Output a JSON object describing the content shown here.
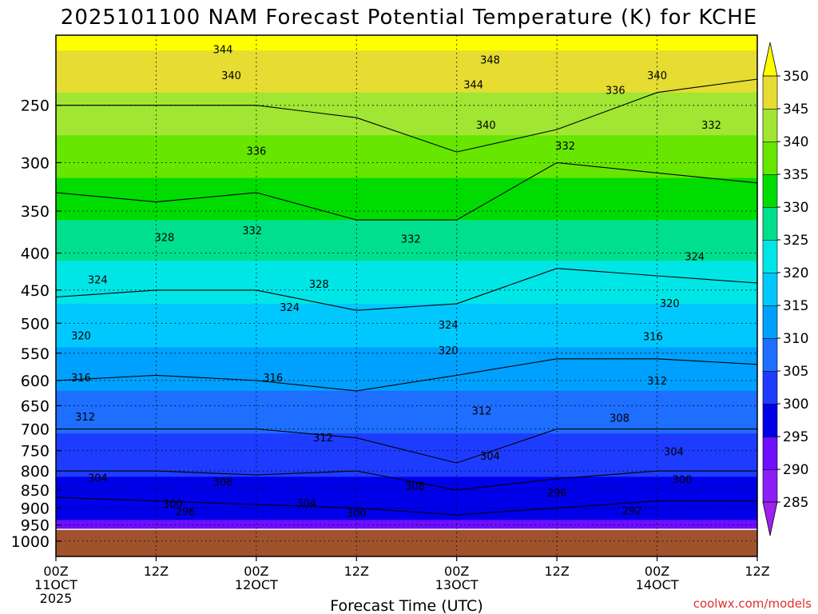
{
  "chart_data": {
    "type": "heatmap",
    "title": "2025101100 NAM Forecast Potential Temperature (K) for KCHE",
    "xlabel": "Forecast Time (UTC)",
    "ylabel": "",
    "watermark": "coolwx.com/models",
    "y_scale": "log",
    "y_axis": {
      "unit": "hPa",
      "range": [
        200,
        1050
      ],
      "ticks": [
        "250",
        "300",
        "350",
        "400",
        "450",
        "500",
        "550",
        "600",
        "650",
        "700",
        "750",
        "800",
        "850",
        "900",
        "950",
        "1000"
      ]
    },
    "x_axis": {
      "range_hours": [
        0,
        84
      ],
      "ticks": [
        {
          "hour": 0,
          "label": "00Z",
          "date": "11OCT",
          "year": "2025"
        },
        {
          "hour": 12,
          "label": "12Z",
          "date": "",
          "year": ""
        },
        {
          "hour": 24,
          "label": "00Z",
          "date": "12OCT",
          "year": ""
        },
        {
          "hour": 36,
          "label": "12Z",
          "date": "",
          "year": ""
        },
        {
          "hour": 48,
          "label": "00Z",
          "date": "13OCT",
          "year": ""
        },
        {
          "hour": 60,
          "label": "12Z",
          "date": "",
          "year": ""
        },
        {
          "hour": 72,
          "label": "00Z",
          "date": "14OCT",
          "year": ""
        },
        {
          "hour": 84,
          "label": "12Z",
          "date": "",
          "year": ""
        }
      ]
    },
    "colorbar": {
      "ticks": [
        "285",
        "290",
        "295",
        "300",
        "305",
        "310",
        "315",
        "320",
        "325",
        "330",
        "335",
        "340",
        "345",
        "350"
      ],
      "bands": [
        {
          "from": 280,
          "to": 285,
          "color": "#a020f0"
        },
        {
          "from": 285,
          "to": 290,
          "color": "#8c1ef8"
        },
        {
          "from": 290,
          "to": 295,
          "color": "#6e0fff"
        },
        {
          "from": 295,
          "to": 300,
          "color": "#0000e8"
        },
        {
          "from": 300,
          "to": 305,
          "color": "#1e3cff"
        },
        {
          "from": 305,
          "to": 310,
          "color": "#1e6eff"
        },
        {
          "from": 310,
          "to": 315,
          "color": "#00a0ff"
        },
        {
          "from": 315,
          "to": 320,
          "color": "#00c8ff"
        },
        {
          "from": 320,
          "to": 325,
          "color": "#00e6e6"
        },
        {
          "from": 325,
          "to": 330,
          "color": "#00e08c"
        },
        {
          "from": 330,
          "to": 335,
          "color": "#00dc00"
        },
        {
          "from": 335,
          "to": 340,
          "color": "#66e600"
        },
        {
          "from": 340,
          "to": 345,
          "color": "#a0e632"
        },
        {
          "from": 345,
          "to": 350,
          "color": "#e6dc32"
        },
        {
          "from": 350,
          "to": 355,
          "color": "#ffff00"
        }
      ]
    },
    "surface_color": "#a0522d",
    "series": [
      {
        "hours": [
          0,
          12,
          24,
          36,
          48,
          60,
          72,
          84
        ],
        "pressures": [
          250,
          250,
          250,
          260,
          290,
          270,
          240,
          230
        ]
      },
      {
        "hours": [
          0,
          12,
          24,
          36,
          48,
          60,
          72,
          84
        ],
        "pressures": [
          330,
          340,
          330,
          360,
          360,
          300,
          310,
          320
        ]
      },
      {
        "hours": [
          0,
          12,
          24,
          36,
          48,
          60,
          72,
          84
        ],
        "pressures": [
          460,
          450,
          450,
          480,
          470,
          420,
          430,
          440
        ]
      },
      {
        "hours": [
          0,
          12,
          24,
          36,
          48,
          60,
          72,
          84
        ],
        "pressures": [
          600,
          590,
          600,
          620,
          590,
          560,
          560,
          570
        ]
      },
      {
        "hours": [
          0,
          12,
          24,
          36,
          48,
          60,
          72,
          84
        ],
        "pressures": [
          700,
          700,
          700,
          720,
          780,
          700,
          700,
          700
        ]
      },
      {
        "hours": [
          0,
          12,
          24,
          36,
          48,
          60,
          72,
          84
        ],
        "pressures": [
          800,
          800,
          810,
          800,
          850,
          820,
          800,
          800
        ]
      },
      {
        "hours": [
          0,
          12,
          24,
          36,
          48,
          60,
          72,
          84
        ],
        "pressures": [
          870,
          880,
          890,
          900,
          920,
          900,
          880,
          880
        ]
      }
    ],
    "contour_labels": [
      {
        "value": "344",
        "hour": 20,
        "hPa": 209
      },
      {
        "value": "348",
        "hour": 52,
        "hPa": 216
      },
      {
        "value": "340",
        "hour": 21,
        "hPa": 227
      },
      {
        "value": "344",
        "hour": 50,
        "hPa": 234
      },
      {
        "value": "340",
        "hour": 72,
        "hPa": 227
      },
      {
        "value": "336",
        "hour": 67,
        "hPa": 238
      },
      {
        "value": "340",
        "hour": 51.5,
        "hPa": 266
      },
      {
        "value": "332",
        "hour": 78.5,
        "hPa": 266
      },
      {
        "value": "336",
        "hour": 24,
        "hPa": 289
      },
      {
        "value": "332",
        "hour": 61,
        "hPa": 284
      },
      {
        "value": "328",
        "hour": 13,
        "hPa": 380
      },
      {
        "value": "332",
        "hour": 23.5,
        "hPa": 372
      },
      {
        "value": "332",
        "hour": 42.5,
        "hPa": 382
      },
      {
        "value": "324",
        "hour": 76.5,
        "hPa": 404
      },
      {
        "value": "324",
        "hour": 5,
        "hPa": 435
      },
      {
        "value": "328",
        "hour": 31.5,
        "hPa": 441
      },
      {
        "value": "324",
        "hour": 28,
        "hPa": 475
      },
      {
        "value": "320",
        "hour": 73.5,
        "hPa": 469
      },
      {
        "value": "324",
        "hour": 47,
        "hPa": 502
      },
      {
        "value": "320",
        "hour": 3,
        "hPa": 520
      },
      {
        "value": "316",
        "hour": 71.5,
        "hPa": 521
      },
      {
        "value": "320",
        "hour": 47,
        "hPa": 545
      },
      {
        "value": "316",
        "hour": 3,
        "hPa": 594
      },
      {
        "value": "316",
        "hour": 26,
        "hPa": 594
      },
      {
        "value": "312",
        "hour": 72,
        "hPa": 600
      },
      {
        "value": "312",
        "hour": 3.5,
        "hPa": 673
      },
      {
        "value": "312",
        "hour": 51,
        "hPa": 660
      },
      {
        "value": "308",
        "hour": 67.5,
        "hPa": 675
      },
      {
        "value": "312",
        "hour": 32,
        "hPa": 719
      },
      {
        "value": "304",
        "hour": 52,
        "hPa": 762
      },
      {
        "value": "304",
        "hour": 74,
        "hPa": 752
      },
      {
        "value": "304",
        "hour": 5,
        "hPa": 817
      },
      {
        "value": "308",
        "hour": 20,
        "hPa": 828
      },
      {
        "value": "300",
        "hour": 75,
        "hPa": 822
      },
      {
        "value": "308",
        "hour": 43,
        "hPa": 838
      },
      {
        "value": "296",
        "hour": 60,
        "hPa": 857
      },
      {
        "value": "300",
        "hour": 14,
        "hPa": 888
      },
      {
        "value": "304",
        "hour": 30,
        "hPa": 885
      },
      {
        "value": "296",
        "hour": 15.5,
        "hPa": 909
      },
      {
        "value": "292",
        "hour": 69,
        "hPa": 907
      },
      {
        "value": "300",
        "hour": 36,
        "hPa": 914
      }
    ]
  }
}
